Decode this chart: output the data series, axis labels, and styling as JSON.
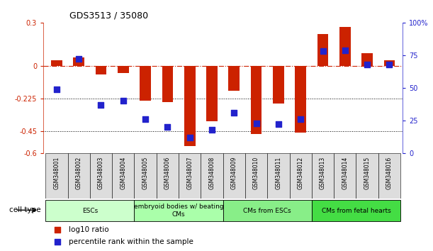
{
  "title": "GDS3513 / 35080",
  "samples": [
    "GSM348001",
    "GSM348002",
    "GSM348003",
    "GSM348004",
    "GSM348005",
    "GSM348006",
    "GSM348007",
    "GSM348008",
    "GSM348009",
    "GSM348010",
    "GSM348011",
    "GSM348012",
    "GSM348013",
    "GSM348014",
    "GSM348015",
    "GSM348016"
  ],
  "log10_ratio": [
    0.04,
    0.06,
    -0.06,
    -0.05,
    -0.24,
    -0.25,
    -0.55,
    -0.38,
    -0.17,
    -0.47,
    -0.26,
    -0.46,
    0.22,
    0.27,
    0.09,
    0.04
  ],
  "percentile_rank": [
    49,
    72,
    37,
    40,
    26,
    20,
    12,
    18,
    31,
    23,
    22,
    26,
    78,
    79,
    68,
    68
  ],
  "ylim_left": [
    -0.6,
    0.3
  ],
  "ylim_right": [
    0,
    100
  ],
  "left_ticks": [
    0.3,
    0,
    -0.225,
    -0.45,
    -0.6
  ],
  "right_ticks": [
    100,
    75,
    50,
    25,
    0
  ],
  "hline_y": 0,
  "dotted_lines": [
    -0.225,
    -0.45
  ],
  "bar_color": "#cc2200",
  "dot_color": "#2222cc",
  "cell_groups": [
    {
      "label": "ESCs",
      "start": 0,
      "end": 3,
      "color": "#ccffcc"
    },
    {
      "label": "embryoid bodies w/ beating\nCMs",
      "start": 4,
      "end": 7,
      "color": "#aaffaa"
    },
    {
      "label": "CMs from ESCs",
      "start": 8,
      "end": 11,
      "color": "#88ee88"
    },
    {
      "label": "CMs from fetal hearts",
      "start": 12,
      "end": 15,
      "color": "#44dd44"
    }
  ],
  "legend_bar_label": "log10 ratio",
  "legend_dot_label": "percentile rank within the sample",
  "cell_type_label": "cell type",
  "bar_width": 0.5,
  "dot_size": 30,
  "label_area_color": "#dddddd",
  "xlim": [
    -0.6,
    15.6
  ]
}
